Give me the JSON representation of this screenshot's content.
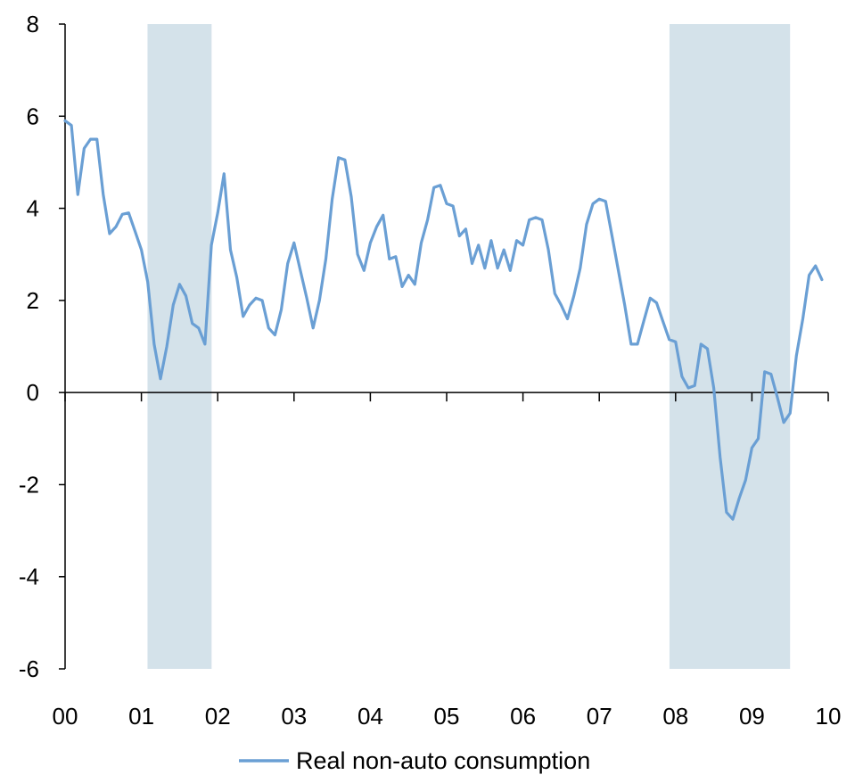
{
  "chart_data": {
    "type": "line",
    "title": "",
    "xlabel": "",
    "ylabel": "",
    "ylim": [
      -6,
      8
    ],
    "xlim": [
      2000,
      2010
    ],
    "y_ticks": [
      8,
      6,
      4,
      2,
      0,
      -2,
      -4,
      -6
    ],
    "x_ticks": [
      {
        "x": 2000,
        "label": "00"
      },
      {
        "x": 2001,
        "label": "01"
      },
      {
        "x": 2002,
        "label": "02"
      },
      {
        "x": 2003,
        "label": "03"
      },
      {
        "x": 2004,
        "label": "04"
      },
      {
        "x": 2005,
        "label": "05"
      },
      {
        "x": 2006,
        "label": "06"
      },
      {
        "x": 2007,
        "label": "07"
      },
      {
        "x": 2008,
        "label": "08"
      },
      {
        "x": 2009,
        "label": "09"
      },
      {
        "x": 2010,
        "label": "10"
      }
    ],
    "shaded_regions": [
      {
        "from": 2001.08,
        "to": 2001.92
      },
      {
        "from": 2007.92,
        "to": 2009.5
      }
    ],
    "grid": false,
    "legend": {
      "position": "bottom"
    },
    "colors": {
      "line": "#6a9fd4",
      "shade": "#d4e2ea",
      "axis": "#000000"
    },
    "series": [
      {
        "name": "Real non-auto consumption",
        "x": [
          2000.0,
          2000.083,
          2000.167,
          2000.25,
          2000.333,
          2000.417,
          2000.5,
          2000.583,
          2000.667,
          2000.75,
          2000.833,
          2000.917,
          2001.0,
          2001.083,
          2001.167,
          2001.25,
          2001.333,
          2001.417,
          2001.5,
          2001.583,
          2001.667,
          2001.75,
          2001.833,
          2001.917,
          2002.0,
          2002.083,
          2002.167,
          2002.25,
          2002.333,
          2002.417,
          2002.5,
          2002.583,
          2002.667,
          2002.75,
          2002.833,
          2002.917,
          2003.0,
          2003.083,
          2003.167,
          2003.25,
          2003.333,
          2003.417,
          2003.5,
          2003.583,
          2003.667,
          2003.75,
          2003.833,
          2003.917,
          2004.0,
          2004.083,
          2004.167,
          2004.25,
          2004.333,
          2004.417,
          2004.5,
          2004.583,
          2004.667,
          2004.75,
          2004.833,
          2004.917,
          2005.0,
          2005.083,
          2005.167,
          2005.25,
          2005.333,
          2005.417,
          2005.5,
          2005.583,
          2005.667,
          2005.75,
          2005.833,
          2005.917,
          2006.0,
          2006.083,
          2006.167,
          2006.25,
          2006.333,
          2006.417,
          2006.5,
          2006.583,
          2006.667,
          2006.75,
          2006.833,
          2006.917,
          2007.0,
          2007.083,
          2007.167,
          2007.25,
          2007.333,
          2007.417,
          2007.5,
          2007.583,
          2007.667,
          2007.75,
          2007.833,
          2007.917,
          2008.0,
          2008.083,
          2008.167,
          2008.25,
          2008.333,
          2008.417,
          2008.5,
          2008.583,
          2008.667,
          2008.75,
          2008.833,
          2008.917,
          2009.0,
          2009.083,
          2009.167,
          2009.25,
          2009.333,
          2009.417,
          2009.5,
          2009.583,
          2009.667,
          2009.75,
          2009.833,
          2009.917
        ],
        "values": [
          5.9,
          5.8,
          4.3,
          5.3,
          5.5,
          5.5,
          4.3,
          3.45,
          3.6,
          3.87,
          3.9,
          3.5,
          3.1,
          2.4,
          1.05,
          0.3,
          1.0,
          1.9,
          2.35,
          2.1,
          1.5,
          1.4,
          1.05,
          3.2,
          3.9,
          4.75,
          3.1,
          2.5,
          1.65,
          1.9,
          2.05,
          2.0,
          1.4,
          1.25,
          1.8,
          2.8,
          3.25,
          2.65,
          2.05,
          1.4,
          2.0,
          2.9,
          4.2,
          5.1,
          5.05,
          4.25,
          3.0,
          2.65,
          3.25,
          3.6,
          3.85,
          2.9,
          2.95,
          2.3,
          2.55,
          2.35,
          3.25,
          3.75,
          4.45,
          4.5,
          4.1,
          4.05,
          3.4,
          3.55,
          2.8,
          3.2,
          2.7,
          3.3,
          2.7,
          3.1,
          2.65,
          3.3,
          3.2,
          3.75,
          3.8,
          3.75,
          3.1,
          2.15,
          1.9,
          1.6,
          2.1,
          2.7,
          3.65,
          4.1,
          4.2,
          4.15,
          3.4,
          2.65,
          1.9,
          1.05,
          1.05,
          1.55,
          2.05,
          1.95,
          1.55,
          1.15,
          1.1,
          0.35,
          0.1,
          0.15,
          1.05,
          0.95,
          0.1,
          -1.4,
          -2.6,
          -2.75,
          -2.3,
          -1.9,
          -1.2,
          -1.0,
          0.45,
          0.4,
          -0.1,
          -0.65,
          -0.45,
          0.8,
          1.6,
          2.55,
          2.75,
          2.45
        ]
      }
    ]
  }
}
